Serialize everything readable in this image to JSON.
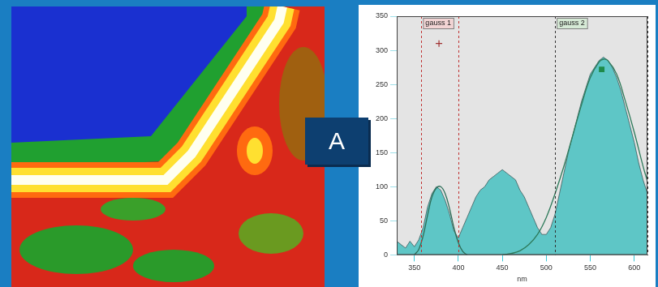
{
  "panel_label": "A",
  "chart_data": {
    "type": "line",
    "x_label": "nm",
    "x": [
      330,
      335,
      340,
      345,
      350,
      355,
      360,
      365,
      370,
      375,
      380,
      385,
      390,
      395,
      400,
      405,
      410,
      415,
      420,
      425,
      430,
      435,
      440,
      445,
      450,
      455,
      460,
      465,
      470,
      475,
      480,
      485,
      490,
      495,
      500,
      505,
      510,
      515,
      520,
      525,
      530,
      535,
      540,
      545,
      550,
      555,
      560,
      565,
      570,
      575,
      580,
      585,
      590,
      595,
      600,
      605,
      610,
      615
    ],
    "values": [
      20,
      15,
      10,
      20,
      12,
      22,
      40,
      70,
      90,
      100,
      95,
      80,
      60,
      35,
      25,
      40,
      55,
      70,
      85,
      95,
      100,
      110,
      115,
      120,
      125,
      120,
      115,
      110,
      95,
      85,
      70,
      55,
      40,
      30,
      30,
      40,
      60,
      90,
      120,
      150,
      175,
      200,
      225,
      245,
      265,
      275,
      285,
      290,
      285,
      275,
      260,
      240,
      215,
      190,
      165,
      135,
      110,
      90
    ],
    "color": "#5ec6c6",
    "fits": [
      {
        "name": "gauss 1",
        "color": "#2d6e58",
        "range": [
          358,
          400
        ],
        "x": [
          350,
          355,
          360,
          365,
          370,
          375,
          380,
          385,
          390,
          395,
          400,
          405,
          410
        ],
        "values": [
          0,
          8,
          28,
          58,
          85,
          98,
          100,
          90,
          68,
          40,
          18,
          5,
          0
        ],
        "peak": {
          "x": 378,
          "y": 310
        },
        "marker": "cross"
      },
      {
        "name": "gauss 2",
        "color": "#2d7a5a",
        "range": [
          510,
          615
        ],
        "x": [
          450,
          460,
          470,
          480,
          490,
          500,
          510,
          520,
          530,
          540,
          550,
          560,
          565,
          570,
          580,
          590,
          600,
          610,
          615
        ],
        "values": [
          0,
          2,
          6,
          15,
          30,
          55,
          90,
          130,
          175,
          220,
          260,
          283,
          287,
          285,
          265,
          225,
          180,
          130,
          108
        ],
        "peak": {
          "x": 563,
          "y": 272
        },
        "marker": "square"
      }
    ],
    "xlim": [
      330,
      615
    ],
    "xticks": [
      350,
      400,
      450,
      500,
      550,
      600
    ],
    "ylim": [
      0,
      350
    ],
    "yticks": [
      0,
      50,
      100,
      150,
      200,
      250,
      300,
      350
    ],
    "grid": true
  }
}
